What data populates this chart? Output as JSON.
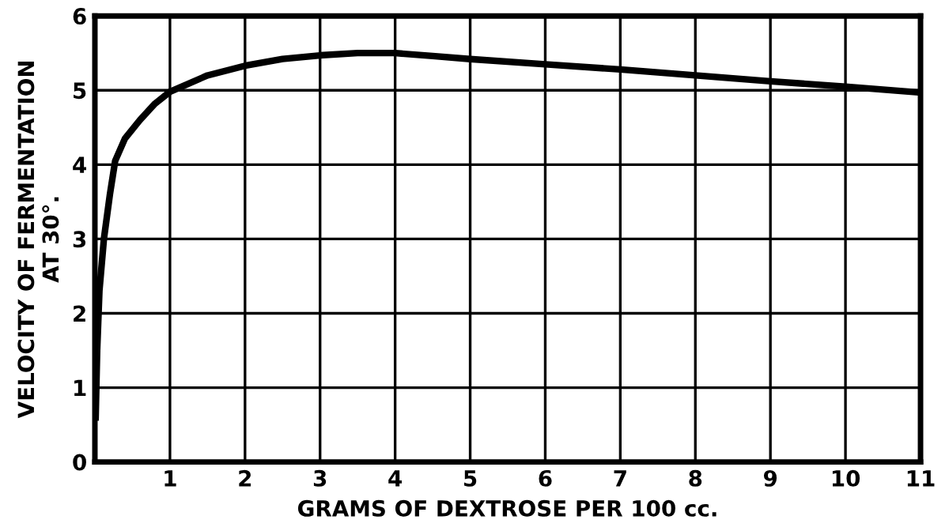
{
  "chart_data": {
    "type": "line",
    "xlabel": "GRAMS OF DEXTROSE PER 100 cc.",
    "ylabel": "VELOCITY OF FERMENTATION\nAT 30°.",
    "series": [
      {
        "color": "#000000",
        "x": [
          0.01,
          0.03,
          0.06,
          0.12,
          0.2,
          0.27,
          0.4,
          0.6,
          0.8,
          1,
          1.5,
          2,
          2.5,
          3,
          3.5,
          4,
          4.5,
          5,
          6,
          7,
          8,
          9,
          10,
          11
        ],
        "values": [
          0.6,
          1.5,
          2.3,
          3,
          3.6,
          4.05,
          4.35,
          4.6,
          4.82,
          4.98,
          5.2,
          5.33,
          5.42,
          5.47,
          5.5,
          5.5,
          5.46,
          5.42,
          5.35,
          5.28,
          5.2,
          5.12,
          5.05,
          4.97
        ]
      }
    ],
    "xlim": [
      0,
      11
    ],
    "ylim": [
      0,
      6
    ],
    "xticks": [
      1,
      2,
      3,
      4,
      5,
      6,
      7,
      8,
      9,
      10,
      11
    ],
    "yticks": [
      0,
      1,
      2,
      3,
      4,
      5,
      6
    ],
    "grid": true,
    "marker": "none",
    "line_style": "solid",
    "legend": false
  }
}
